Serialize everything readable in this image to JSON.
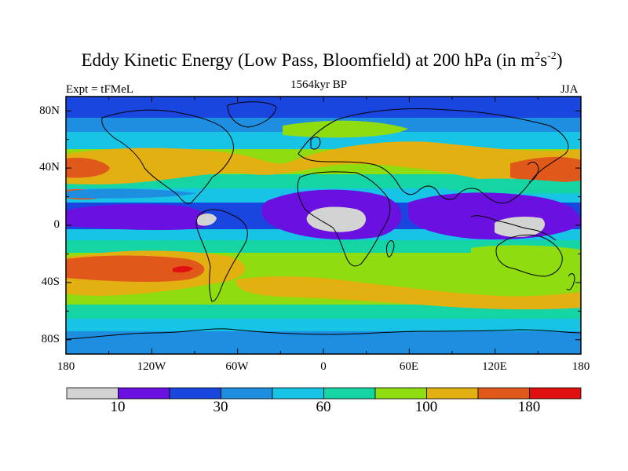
{
  "title": {
    "main": "Eddy Kinetic Energy (Low Pass, Bloomfield) at 200 hPa (in m",
    "sup1": "2",
    "mid": "s",
    "sup2": "-2",
    "end": ")"
  },
  "left_label": "Expt = tFMeL",
  "center_label": "1564kyr BP",
  "right_label": "JJA",
  "lat_labels": [
    "80N",
    "40N",
    "0",
    "40S",
    "80S"
  ],
  "lon_labels": [
    "180",
    "120W",
    "60W",
    "0",
    "60E",
    "120E",
    "180"
  ],
  "colorbar": {
    "colors": [
      "#d3d3d3",
      "#6a10e0",
      "#1a46e0",
      "#1e8fe0",
      "#17c4e6",
      "#16d5a5",
      "#8fdc10",
      "#e3b012",
      "#e1591a",
      "#e01010"
    ],
    "tick_labels": [
      "10",
      "30",
      "60",
      "100",
      "180"
    ]
  }
}
